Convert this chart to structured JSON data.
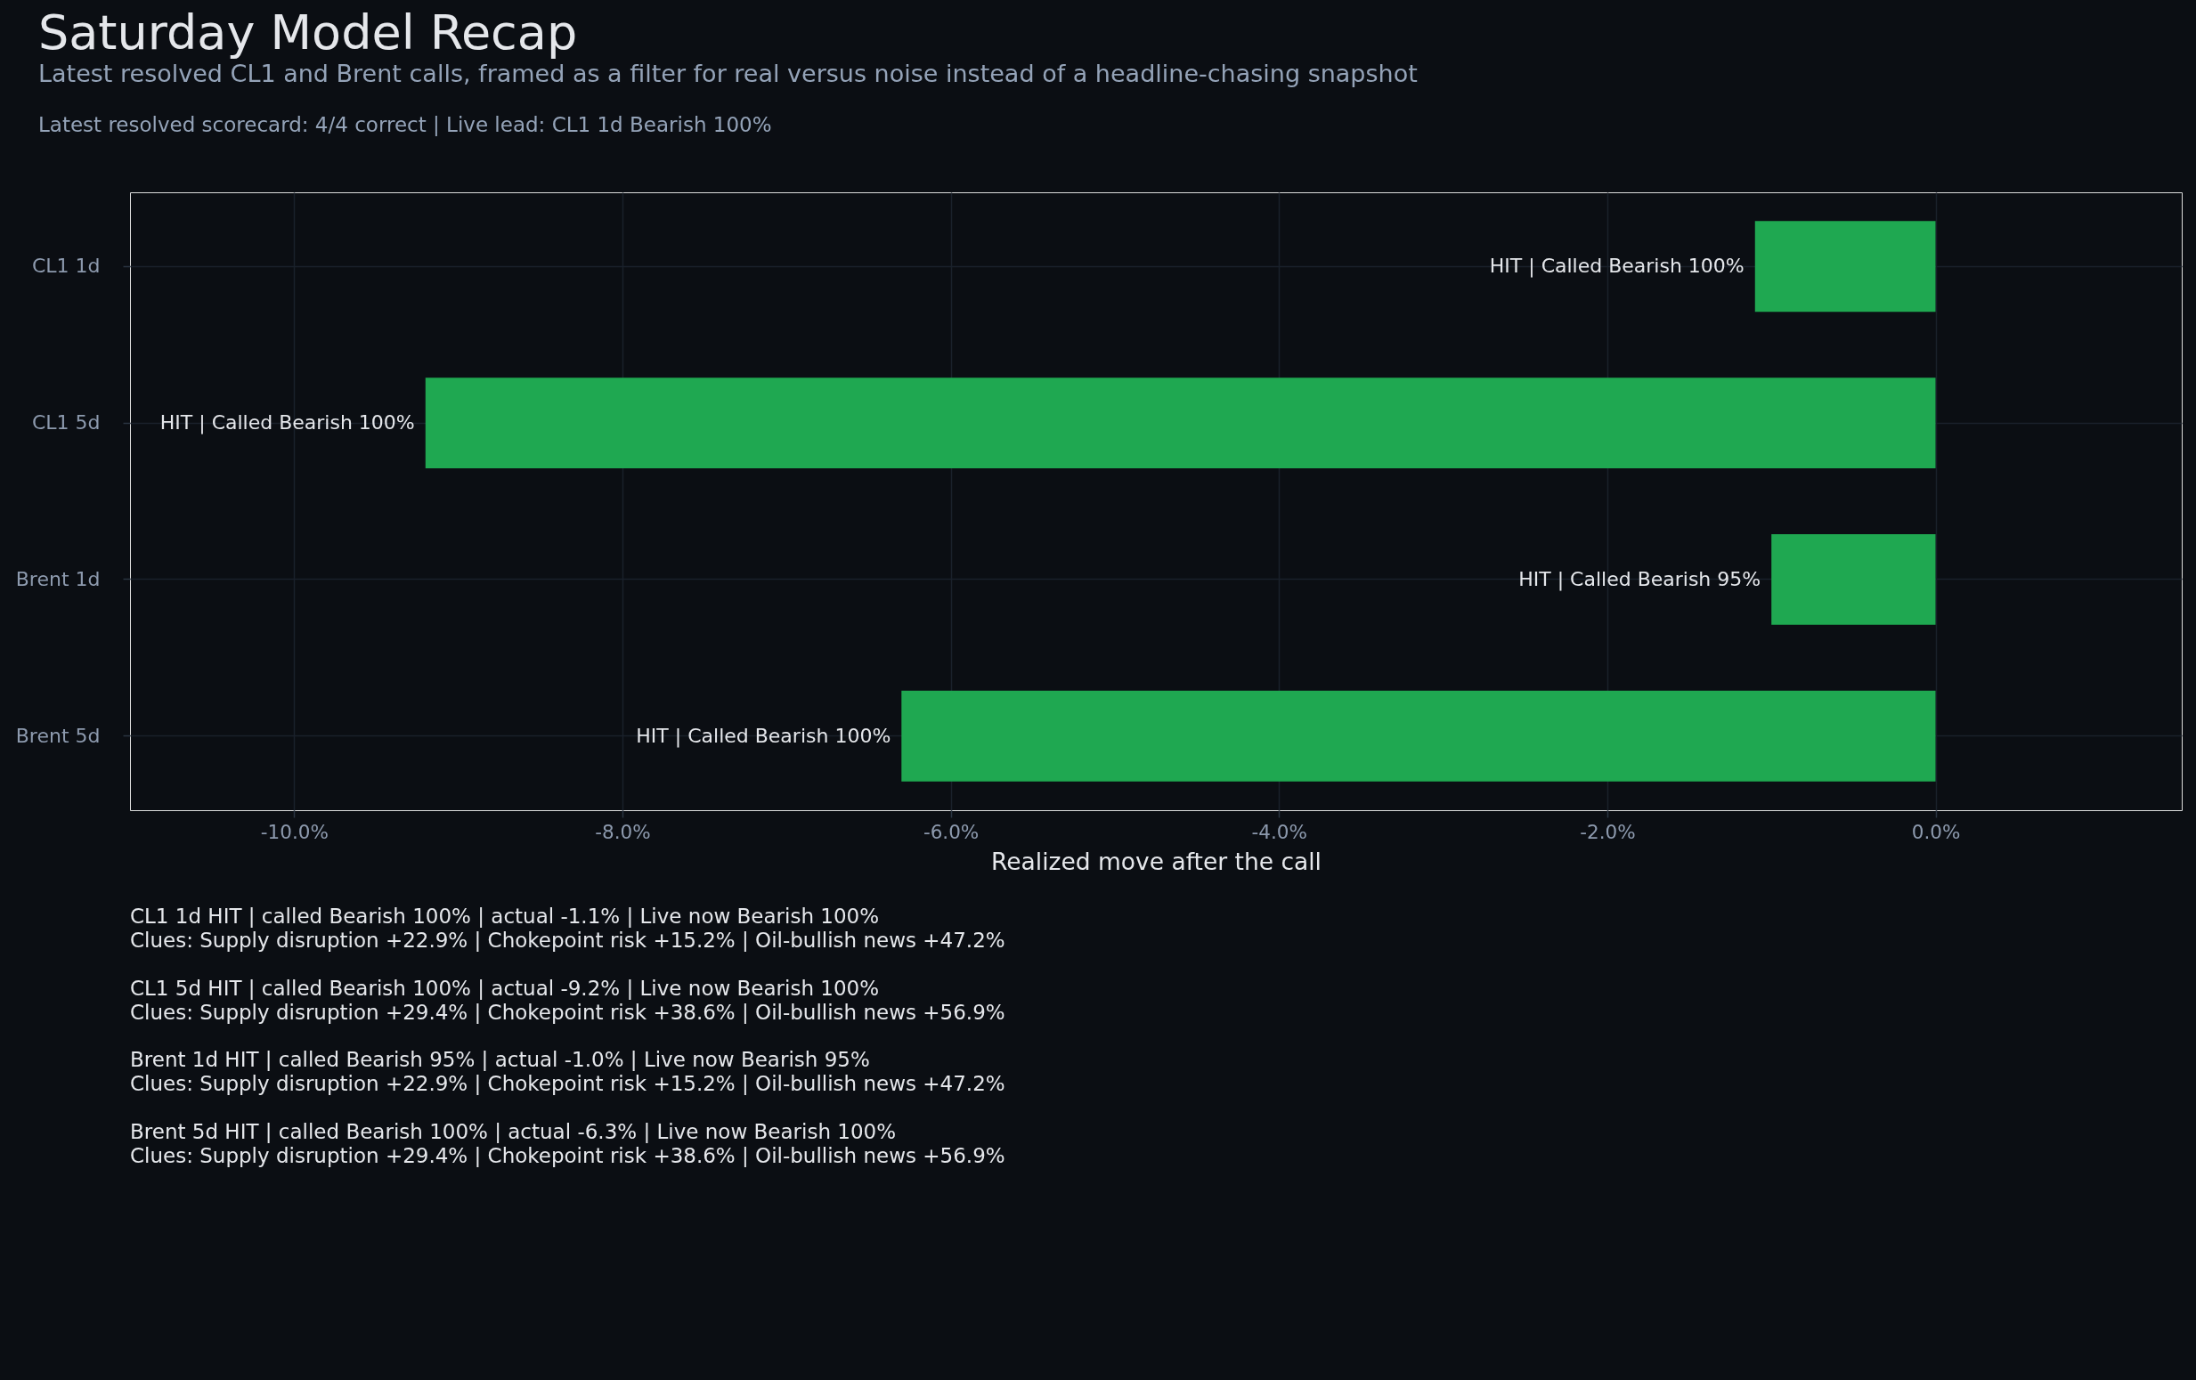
{
  "chart_data": {
    "type": "bar",
    "orientation": "horizontal",
    "title": "Saturday Model Recap",
    "subtitle": "Latest resolved CL1 and Brent calls, framed as a filter for real versus noise instead of a headline-chasing snapshot",
    "xlabel": "Realized move after the call",
    "categories": [
      "CL1 1d",
      "CL1 5d",
      "Brent 1d",
      "Brent 5d"
    ],
    "values": [
      -1.1,
      -9.2,
      -1.0,
      -6.3
    ],
    "color": "#1fa851",
    "value_labels": [
      "HIT | Called Bearish 100%",
      "HIT | Called Bearish 100%",
      "HIT | Called Bearish 95%",
      "HIT | Called Bearish 100%"
    ],
    "xlim": [
      -11,
      1.5
    ],
    "xticks": [
      {
        "value": -10,
        "label": "-10.0%"
      },
      {
        "value": -8,
        "label": "-8.0%"
      },
      {
        "value": -6,
        "label": "-6.0%"
      },
      {
        "value": -4,
        "label": "-4.0%"
      },
      {
        "value": -2,
        "label": "-2.0%"
      },
      {
        "value": 0,
        "label": "0.0%"
      }
    ],
    "grid": true,
    "annotations": [
      "Latest resolved scorecard: 4/4 correct  |  Live lead: CL1 1d Bearish 100%",
      "CL1 1d HIT | called Bearish 100% | actual -1.1% | Live now Bearish 100%\nClues: Supply disruption +22.9% | Chokepoint risk +15.2% | Oil-bullish news +47.2%",
      "CL1 5d HIT | called Bearish 100% | actual -9.2% | Live now Bearish 100%\nClues: Supply disruption +29.4% | Chokepoint risk +38.6% | Oil-bullish news +56.9%",
      "Brent 1d HIT | called Bearish 95% | actual -1.0% | Live now Bearish 95%\nClues: Supply disruption +22.9% | Chokepoint risk +15.2% | Oil-bullish news +47.2%",
      "Brent 5d HIT | called Bearish 100% | actual -6.3% | Live now Bearish 100%\nClues: Supply disruption +29.4% | Chokepoint risk +38.6% | Oil-bullish news +56.9%"
    ]
  }
}
